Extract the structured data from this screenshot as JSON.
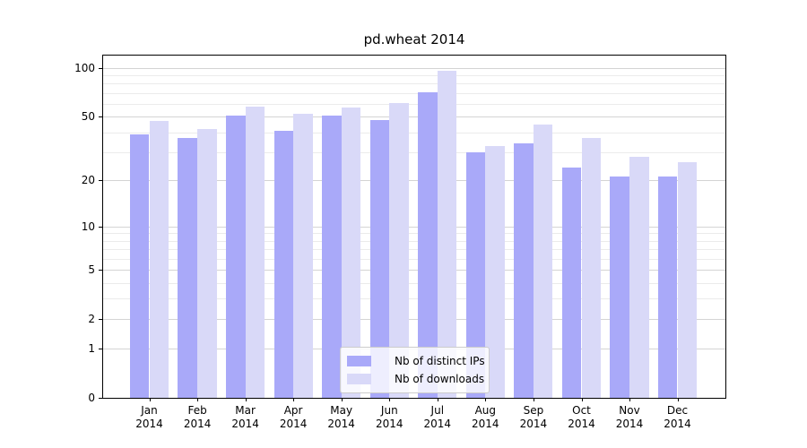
{
  "title": "pd.wheat 2014",
  "colors": {
    "bar_distinct_ips": "#a9a9f9",
    "bar_downloads": "#d9d9f8",
    "grid_major": "#d4d4d4",
    "grid_minor": "#ebebeb",
    "spine": "#000000",
    "legend_border": "#cccccc"
  },
  "chart_data": {
    "type": "bar",
    "title": "pd.wheat 2014",
    "categories": [
      "Jan",
      "Feb",
      "Mar",
      "Apr",
      "May",
      "Jun",
      "Jul",
      "Aug",
      "Sep",
      "Oct",
      "Nov",
      "Dec"
    ],
    "xtick_year": "2014",
    "series": [
      {
        "name": "Nb of distinct IPs",
        "color": "#a9a9f9",
        "values": [
          39,
          37,
          51,
          41,
          51,
          48,
          71,
          30,
          34,
          24,
          21,
          21
        ]
      },
      {
        "name": "Nb of downloads",
        "color": "#d9d9f8",
        "values": [
          47,
          42,
          58,
          52,
          57,
          61,
          96,
          33,
          45,
          37,
          28,
          26
        ]
      }
    ],
    "yscale": "log1p",
    "ylim": [
      0,
      119
    ],
    "yticks": [
      100,
      50,
      20,
      10,
      5,
      2,
      1,
      0
    ],
    "yticks_minor": [
      3,
      4,
      6,
      7,
      8,
      9,
      30,
      40,
      60,
      70,
      80,
      90
    ],
    "grid": true,
    "legend_position": "lower center inside"
  }
}
